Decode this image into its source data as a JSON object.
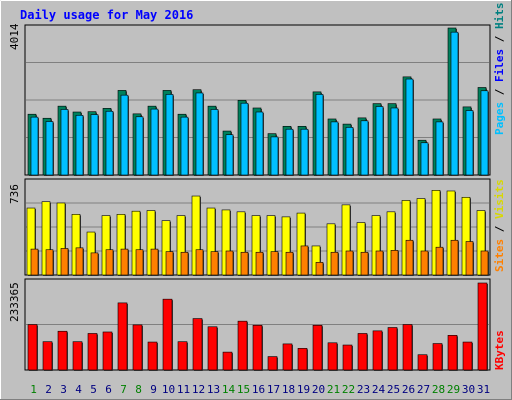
{
  "chart_data": [
    {
      "type": "bar",
      "title": "Daily usage for May 2016",
      "categories": [
        "1",
        "2",
        "3",
        "4",
        "5",
        "6",
        "7",
        "8",
        "9",
        "10",
        "11",
        "12",
        "13",
        "14",
        "15",
        "16",
        "17",
        "18",
        "19",
        "20",
        "21",
        "22",
        "23",
        "24",
        "25",
        "26",
        "27",
        "28",
        "29",
        "30",
        "31"
      ],
      "weekend_days": [
        "1",
        "7",
        "8",
        "14",
        "15",
        "21",
        "22",
        "28",
        "29"
      ],
      "ymax_label": "4014",
      "ylim": [
        0,
        4014
      ],
      "legend": [
        "Pages",
        "Files",
        "Hits"
      ],
      "series": [
        {
          "name": "Pages",
          "values": [
            0,
            0,
            0,
            0,
            0,
            0,
            0,
            0,
            0,
            0,
            0,
            0,
            0,
            0,
            0,
            0,
            0,
            0,
            0,
            0,
            0,
            0,
            0,
            0,
            0,
            0,
            0,
            0,
            0,
            0,
            0
          ]
        },
        {
          "name": "Files",
          "values": [
            1580,
            1460,
            1790,
            1630,
            1650,
            1740,
            2180,
            1590,
            1800,
            2200,
            1580,
            2240,
            1790,
            1100,
            1960,
            1720,
            1040,
            1250,
            1250,
            2200,
            1450,
            1300,
            1480,
            1870,
            1830,
            2620,
            880,
            1450,
            3900,
            1760,
            2300
          ]
        },
        {
          "name": "Hits",
          "values": [
            1660,
            1550,
            1880,
            1720,
            1730,
            1820,
            2310,
            1670,
            1880,
            2310,
            1660,
            2330,
            1880,
            1200,
            2040,
            1830,
            1130,
            1330,
            1330,
            2270,
            1530,
            1390,
            1560,
            1950,
            1950,
            2680,
            950,
            1530,
            4014,
            1860,
            2390
          ]
        }
      ]
    },
    {
      "type": "bar",
      "ymax_label": "736",
      "ylim": [
        0,
        736
      ],
      "legend": [
        "Sites",
        "Visits"
      ],
      "series": [
        {
          "name": "Sites",
          "values": [
            205,
            200,
            210,
            215,
            175,
            200,
            205,
            200,
            205,
            185,
            180,
            200,
            185,
            190,
            180,
            180,
            185,
            180,
            230,
            100,
            180,
            190,
            180,
            190,
            195,
            275,
            190,
            220,
            275,
            265,
            190
          ]
        },
        {
          "name": "Visits",
          "values": [
            530,
            580,
            570,
            480,
            340,
            470,
            480,
            505,
            510,
            430,
            470,
            625,
            530,
            515,
            500,
            470,
            470,
            460,
            490,
            230,
            405,
            555,
            415,
            470,
            500,
            590,
            605,
            670,
            665,
            615,
            510
          ]
        }
      ]
    },
    {
      "type": "bar",
      "ymax_label": "233365",
      "ylim": [
        0,
        233365
      ],
      "legend": [
        "KBytes"
      ],
      "series": [
        {
          "name": "KBytes",
          "values": [
            122000,
            76000,
            104000,
            76000,
            98000,
            102000,
            180000,
            121000,
            75000,
            190000,
            76000,
            138000,
            116000,
            48000,
            131000,
            120000,
            36000,
            70000,
            58000,
            120000,
            73000,
            67000,
            98000,
            105000,
            114000,
            122000,
            41000,
            71000,
            93000,
            75000,
            233365
          ]
        }
      ]
    }
  ]
}
